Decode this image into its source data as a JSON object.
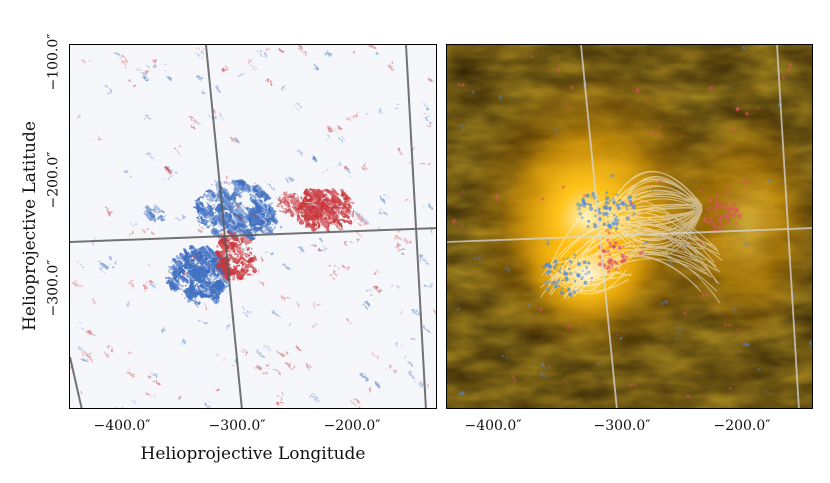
{
  "figure": {
    "x_axis_label": "Helioprojective Longitude",
    "y_axis_label": "Helioprojective Latitude",
    "left_panel": {
      "description_name": "magnetogram",
      "x_ticks": [
        "−400.0″",
        "−300.0″",
        "−200.0″"
      ],
      "y_ticks": [
        "−100.0″",
        "−200.0″",
        "−300.0″"
      ]
    },
    "right_panel": {
      "description_name": "euv-field-lines",
      "x_ticks": [
        "−400.0″",
        "−300.0″",
        "−200.0″"
      ]
    },
    "colors": {
      "positive_polarity": "#c8353a",
      "negative_polarity": "#3f6fc0",
      "euv_glow": "#ffb300",
      "grid": "#555555"
    }
  }
}
